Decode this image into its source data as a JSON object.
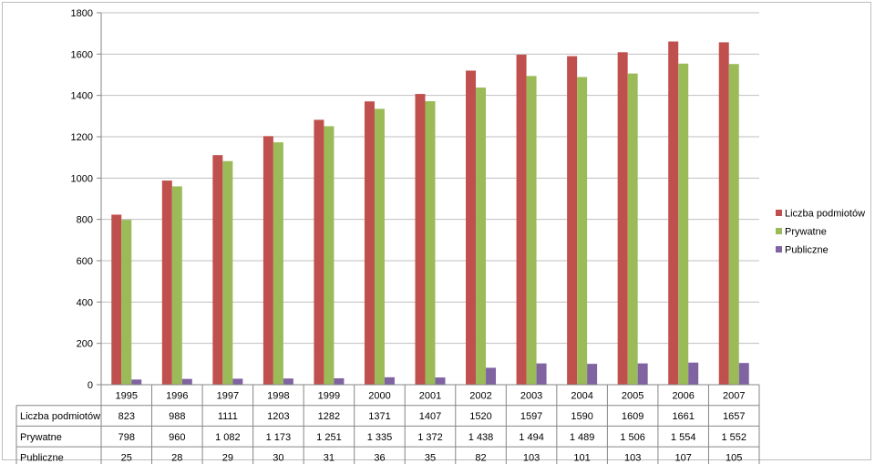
{
  "chart_data": {
    "type": "bar",
    "title": "",
    "xlabel": "",
    "ylabel": "",
    "ylim": [
      0,
      1800
    ],
    "yticks": [
      0,
      200,
      400,
      600,
      800,
      1000,
      1200,
      1400,
      1600,
      1800
    ],
    "grid": true,
    "legend_position": "right",
    "categories": [
      "1995",
      "1996",
      "1997",
      "1998",
      "1999",
      "2000",
      "2001",
      "2002",
      "2003",
      "2004",
      "2005",
      "2006",
      "2007"
    ],
    "series": [
      {
        "name": "Liczba podmiotów",
        "color": "#c0504d",
        "values": [
          823,
          988,
          1111,
          1203,
          1282,
          1371,
          1407,
          1520,
          1597,
          1590,
          1609,
          1661,
          1657
        ],
        "table_labels": [
          "823",
          "988",
          "1111",
          "1203",
          "1282",
          "1371",
          "1407",
          "1520",
          "1597",
          "1590",
          "1609",
          "1661",
          "1657"
        ]
      },
      {
        "name": "Prywatne",
        "color": "#9bbb59",
        "values": [
          798,
          960,
          1082,
          1173,
          1251,
          1335,
          1372,
          1438,
          1494,
          1489,
          1506,
          1554,
          1552
        ],
        "table_labels": [
          "798",
          "960",
          "1 082",
          "1 173",
          "1 251",
          "1 335",
          "1 372",
          "1 438",
          "1 494",
          "1 489",
          "1 506",
          "1 554",
          "1 552"
        ]
      },
      {
        "name": "Publiczne",
        "color": "#8064a2",
        "values": [
          25,
          28,
          29,
          30,
          31,
          36,
          35,
          82,
          103,
          101,
          103,
          107,
          105
        ],
        "table_labels": [
          "25",
          "28",
          "29",
          "30",
          "31",
          "36",
          "35",
          "82",
          "103",
          "101",
          "103",
          "107",
          "105"
        ]
      }
    ]
  }
}
